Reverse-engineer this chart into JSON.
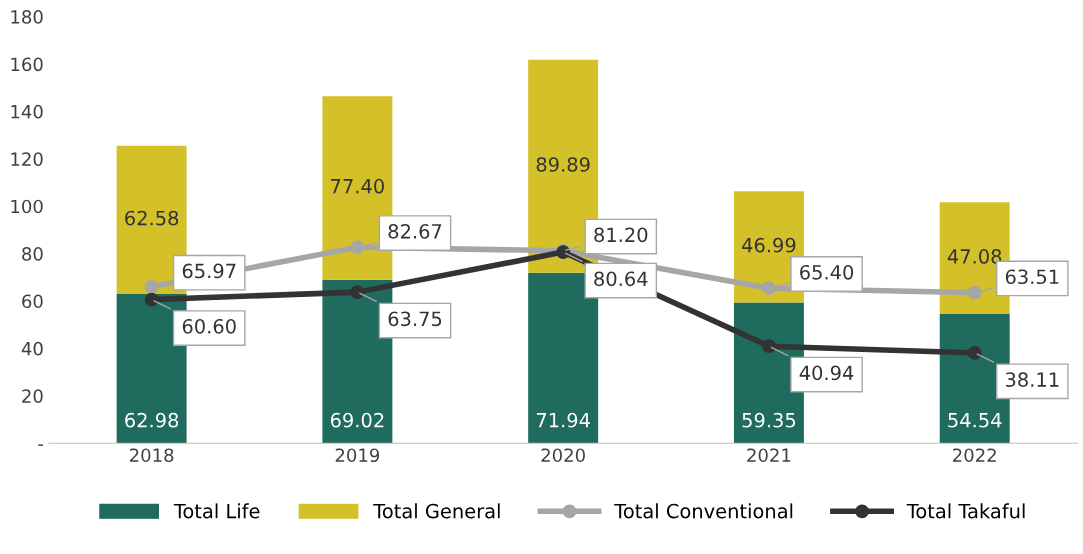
{
  "chart_data": {
    "type": "bar",
    "stacked": true,
    "categories": [
      "2018",
      "2019",
      "2020",
      "2021",
      "2022"
    ],
    "series": [
      {
        "name": "Total Life",
        "color": "#1f6b5e",
        "values": [
          62.98,
          69.02,
          71.94,
          59.35,
          54.54
        ]
      },
      {
        "name": "Total General",
        "color": "#d4c12a",
        "values": [
          62.58,
          77.4,
          89.89,
          46.99,
          47.08
        ]
      },
      {
        "name": "Total Conventional",
        "type": "line",
        "color": "#a6a6a6",
        "marker": "circle",
        "values": [
          65.97,
          82.67,
          81.2,
          65.4,
          63.51
        ]
      },
      {
        "name": "Total Takaful",
        "type": "line",
        "color": "#333333",
        "marker": "circle",
        "values": [
          60.6,
          63.75,
          80.64,
          40.94,
          38.11
        ]
      }
    ],
    "value_labels": [
      [
        "62.98",
        "69.02",
        "71.94",
        "59.35",
        "54.54"
      ],
      [
        "62.58",
        "77.40",
        "89.89",
        "46.99",
        "47.08"
      ],
      [
        "65.97",
        "82.67",
        "81.20",
        "65.40",
        "63.51"
      ],
      [
        "60.60",
        "63.75",
        "80.64",
        "40.94",
        "38.11"
      ]
    ],
    "ylim": [
      0,
      180
    ],
    "yticks": [
      {
        "value": 0,
        "label": "-"
      },
      20,
      40,
      60,
      80,
      100,
      120,
      140,
      160,
      180
    ],
    "grid": false,
    "legend": "bottom"
  }
}
